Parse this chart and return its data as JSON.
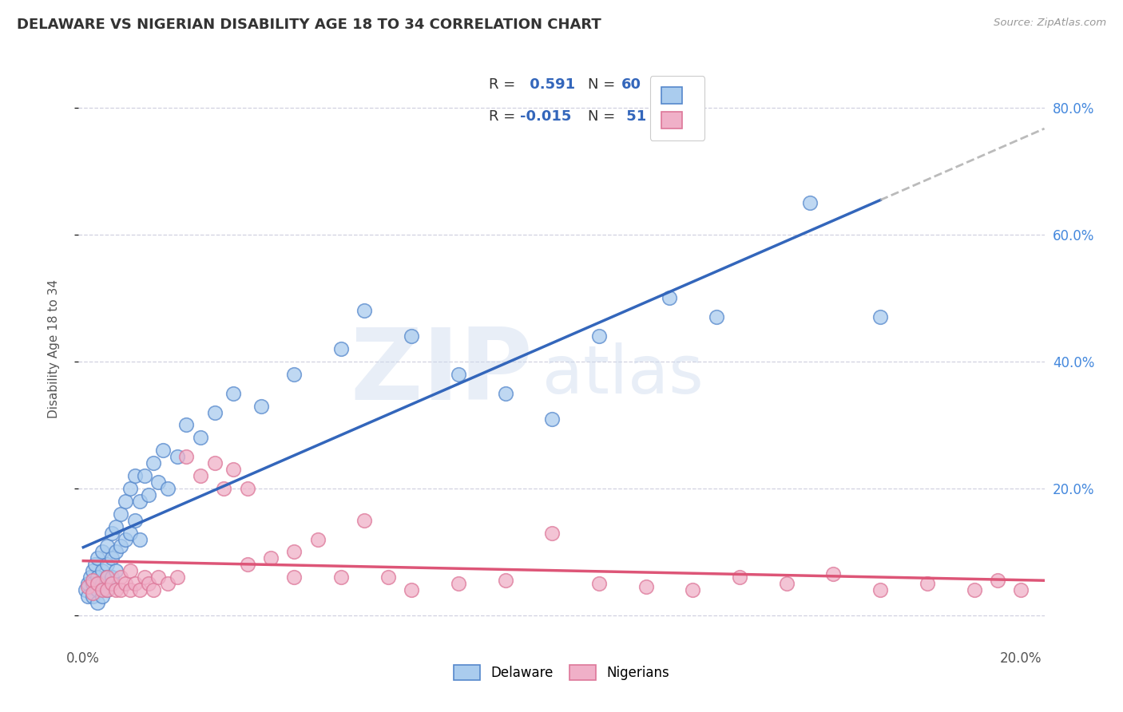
{
  "title": "DELAWARE VS NIGERIAN DISABILITY AGE 18 TO 34 CORRELATION CHART",
  "source_text": "Source: ZipAtlas.com",
  "ylabel": "Disability Age 18 to 34",
  "xlim": [
    -0.001,
    0.205
  ],
  "ylim": [
    -0.04,
    0.88
  ],
  "watermark_zip": "ZIP",
  "watermark_atlas": "atlas",
  "r_del": "0.591",
  "n_del": "60",
  "r_nig": "-0.015",
  "n_nig": "51",
  "del_fill": "#aaccee",
  "del_edge": "#5588cc",
  "nig_fill": "#f0b0c8",
  "nig_edge": "#dd7799",
  "del_line": "#3366bb",
  "nig_line": "#dd5577",
  "bg_color": "#ffffff",
  "grid_color": "#ccccdd",
  "title_color": "#333333",
  "right_tick_color": "#4488dd",
  "legend_text_color": "#3366bb",
  "del_x": [
    0.0005,
    0.001,
    0.001,
    0.0015,
    0.002,
    0.002,
    0.002,
    0.0025,
    0.003,
    0.003,
    0.003,
    0.003,
    0.004,
    0.004,
    0.004,
    0.004,
    0.005,
    0.005,
    0.005,
    0.005,
    0.006,
    0.006,
    0.006,
    0.007,
    0.007,
    0.007,
    0.008,
    0.008,
    0.009,
    0.009,
    0.01,
    0.01,
    0.011,
    0.011,
    0.012,
    0.012,
    0.013,
    0.014,
    0.015,
    0.016,
    0.017,
    0.018,
    0.02,
    0.022,
    0.025,
    0.028,
    0.032,
    0.038,
    0.045,
    0.055,
    0.06,
    0.07,
    0.08,
    0.09,
    0.1,
    0.11,
    0.125,
    0.135,
    0.155,
    0.17
  ],
  "del_y": [
    0.04,
    0.05,
    0.03,
    0.06,
    0.07,
    0.05,
    0.03,
    0.08,
    0.09,
    0.06,
    0.04,
    0.02,
    0.1,
    0.07,
    0.05,
    0.03,
    0.11,
    0.08,
    0.06,
    0.04,
    0.13,
    0.09,
    0.06,
    0.14,
    0.1,
    0.07,
    0.16,
    0.11,
    0.18,
    0.12,
    0.2,
    0.13,
    0.22,
    0.15,
    0.18,
    0.12,
    0.22,
    0.19,
    0.24,
    0.21,
    0.26,
    0.2,
    0.25,
    0.3,
    0.28,
    0.32,
    0.35,
    0.33,
    0.38,
    0.42,
    0.48,
    0.44,
    0.38,
    0.35,
    0.31,
    0.44,
    0.5,
    0.47,
    0.65,
    0.47
  ],
  "nig_x": [
    0.001,
    0.002,
    0.002,
    0.003,
    0.004,
    0.005,
    0.005,
    0.006,
    0.007,
    0.008,
    0.008,
    0.009,
    0.01,
    0.01,
    0.011,
    0.012,
    0.013,
    0.014,
    0.015,
    0.016,
    0.018,
    0.02,
    0.022,
    0.025,
    0.028,
    0.03,
    0.032,
    0.035,
    0.04,
    0.045,
    0.05,
    0.055,
    0.06,
    0.065,
    0.07,
    0.08,
    0.09,
    0.1,
    0.11,
    0.12,
    0.13,
    0.14,
    0.15,
    0.16,
    0.17,
    0.18,
    0.19,
    0.195,
    0.2,
    0.035,
    0.045
  ],
  "nig_y": [
    0.045,
    0.055,
    0.035,
    0.05,
    0.04,
    0.06,
    0.04,
    0.05,
    0.04,
    0.06,
    0.04,
    0.05,
    0.07,
    0.04,
    0.05,
    0.04,
    0.06,
    0.05,
    0.04,
    0.06,
    0.05,
    0.06,
    0.25,
    0.22,
    0.24,
    0.2,
    0.23,
    0.08,
    0.09,
    0.1,
    0.12,
    0.06,
    0.15,
    0.06,
    0.04,
    0.05,
    0.055,
    0.13,
    0.05,
    0.045,
    0.04,
    0.06,
    0.05,
    0.065,
    0.04,
    0.05,
    0.04,
    0.055,
    0.04,
    0.2,
    0.06
  ],
  "yticks": [
    0.0,
    0.2,
    0.4,
    0.6,
    0.8
  ],
  "xticks": [
    0.0,
    0.04,
    0.08,
    0.12,
    0.16,
    0.2
  ]
}
